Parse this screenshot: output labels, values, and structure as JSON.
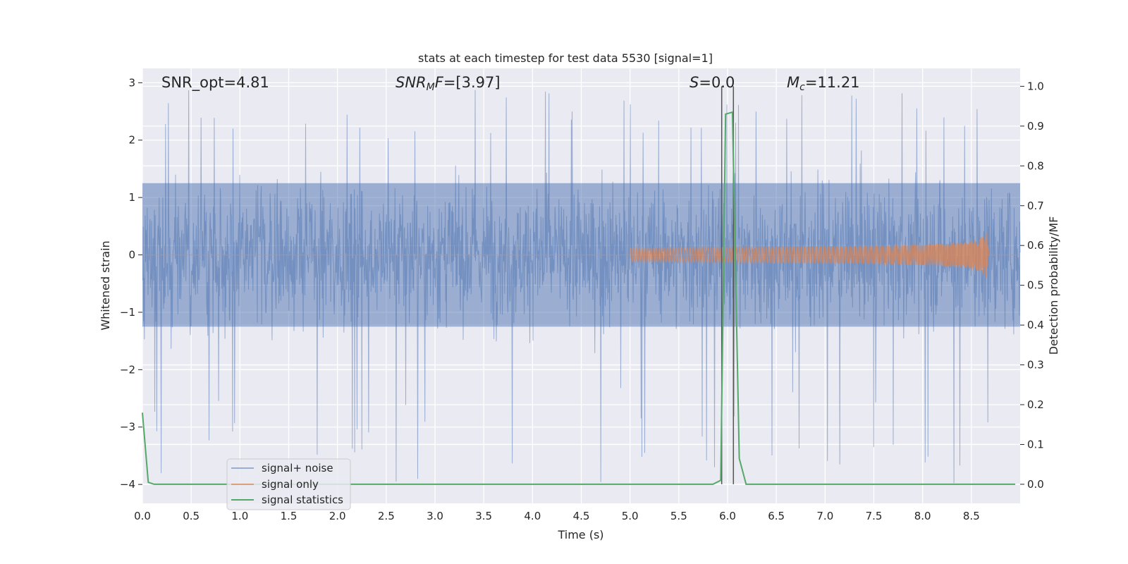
{
  "chart_data": {
    "type": "line",
    "title": "stats at each timestep for test data 5530 [signal=1]",
    "xlabel": "Time (s)",
    "ylabel": "Whitened strain",
    "ylabel_right": "Detection probability/MF",
    "xlim": [
      0.0,
      9.0
    ],
    "ylim": [
      -4.33,
      3.25
    ],
    "ylim_right": [
      -0.048,
      1.045
    ],
    "xticks": [
      "0.0",
      "0.5",
      "1.0",
      "1.5",
      "2.0",
      "2.5",
      "3.0",
      "3.5",
      "4.0",
      "4.5",
      "5.0",
      "5.5",
      "6.0",
      "6.5",
      "7.0",
      "7.5",
      "8.0",
      "8.5"
    ],
    "yticks_left": [
      "3",
      "2",
      "1",
      "0",
      "−1",
      "−2",
      "−3",
      "−4"
    ],
    "yticks_right": [
      "1.0",
      "0.9",
      "0.8",
      "0.7",
      "0.6",
      "0.5",
      "0.4",
      "0.3",
      "0.2",
      "0.1",
      "0.0"
    ],
    "grid": true,
    "legend_placement": "lower-left",
    "annotations": {
      "snr_opt": "SNR_opt=4.81",
      "snr_mf_main": "SNR",
      "snr_mf_sub": "M",
      "snr_mf_rest": "F=[3.97]",
      "s_var": "S",
      "s_rest": "=0.0",
      "mc_var": "M",
      "mc_sub": "c",
      "mc_rest": "=11.21"
    },
    "vertical_markers_x": [
      5.94,
      6.06
    ],
    "series": [
      {
        "name": "signal+ noise",
        "color": "#4c72b0",
        "description_values": "noisy whitened strain spanning about -2.2 to 2.2 with spikes up to about 2.9 and down to about -4.0",
        "band_min": -1.25,
        "band_max": 1.25,
        "spike_max": 2.9,
        "spike_min": -4.0
      },
      {
        "name": "signal only",
        "color": "#dd8452",
        "chirp_start": 5.0,
        "chirp_end": 8.67,
        "peak_amplitude": 0.65
      },
      {
        "name": "signal statistics",
        "color": "#55a868",
        "axis": "right",
        "x": [
          0.0,
          0.06,
          0.12,
          5.85,
          5.93,
          5.98,
          6.05,
          6.12,
          6.19,
          8.95
        ],
        "y": [
          0.18,
          0.005,
          0.0,
          0.0,
          0.01,
          0.93,
          0.935,
          0.065,
          0.0,
          0.0
        ]
      }
    ]
  }
}
